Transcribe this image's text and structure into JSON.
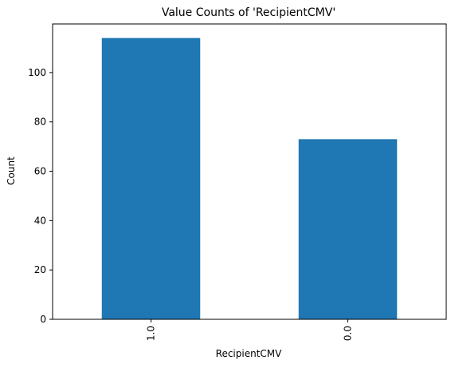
{
  "chart_data": {
    "type": "bar",
    "title": "Value Counts of 'RecipientCMV'",
    "xlabel": "RecipientCMV",
    "ylabel": "Count",
    "categories": [
      "1.0",
      "0.0"
    ],
    "values": [
      114,
      73
    ],
    "ylim": [
      0,
      119.7
    ],
    "yticks": [
      "0",
      "20",
      "40",
      "60",
      "80",
      "100"
    ],
    "xtick_rotation": "vertical",
    "bar_color": "#1f77b4",
    "grid": false,
    "legend": "none"
  }
}
